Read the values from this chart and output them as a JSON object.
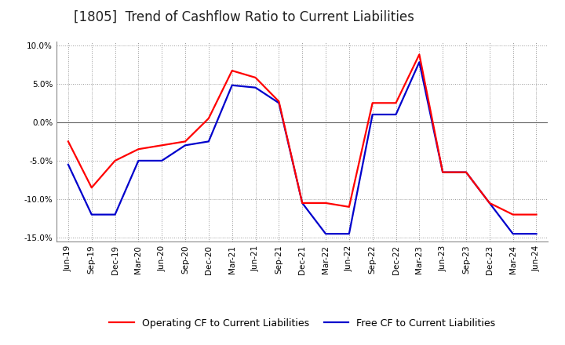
{
  "title": "[1805]  Trend of Cashflow Ratio to Current Liabilities",
  "x_labels": [
    "Jun-19",
    "Sep-19",
    "Dec-19",
    "Mar-20",
    "Jun-20",
    "Sep-20",
    "Dec-20",
    "Mar-21",
    "Jun-21",
    "Sep-21",
    "Dec-21",
    "Mar-22",
    "Jun-22",
    "Sep-22",
    "Dec-22",
    "Mar-23",
    "Jun-23",
    "Sep-23",
    "Dec-23",
    "Mar-24",
    "Jun-24"
  ],
  "operating_cf": [
    -2.5,
    -8.5,
    -5.0,
    -3.5,
    -3.0,
    -2.5,
    0.5,
    6.7,
    5.8,
    2.7,
    -10.5,
    -10.5,
    -11.0,
    2.5,
    2.5,
    8.8,
    -6.5,
    -6.5,
    -10.5,
    -12.0,
    -12.0
  ],
  "free_cf": [
    -5.5,
    -12.0,
    -12.0,
    -5.0,
    -5.0,
    -3.0,
    -2.5,
    4.8,
    4.5,
    2.5,
    -10.5,
    -14.5,
    -14.5,
    1.0,
    1.0,
    7.8,
    -6.5,
    -6.5,
    -10.5,
    -14.5,
    -14.5
  ],
  "ylim": [
    -15.5,
    10.5
  ],
  "yticks": [
    -15.0,
    -10.0,
    -5.0,
    0.0,
    5.0,
    10.0
  ],
  "operating_color": "#FF0000",
  "free_color": "#0000CC",
  "background_color": "#FFFFFF",
  "plot_bg_color": "#FFFFFF",
  "grid_color": "#999999",
  "title_fontsize": 12,
  "legend_fontsize": 9,
  "tick_fontsize": 7.5
}
